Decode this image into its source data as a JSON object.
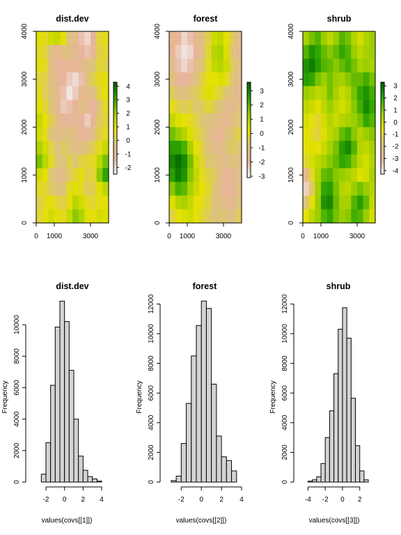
{
  "colors": {
    "bar_fill": "#d3d3d3",
    "ramp": [
      "#f2f2f2",
      "#e8b39c",
      "#dcc47a",
      "#e5e100",
      "#9ecf00",
      "#2ea600",
      "#006400"
    ]
  },
  "chart_data": [
    {
      "type": "heatmap",
      "title": "dist.dev",
      "xlim": [
        0,
        4000
      ],
      "ylim": [
        0,
        4000
      ],
      "xticks": [
        "0",
        "1000",
        "3000"
      ],
      "xtick_values": [
        0,
        1000,
        3000
      ],
      "yticks": [
        "0",
        "1000",
        "2000",
        "3000",
        "4000"
      ],
      "ytick_values": [
        0,
        1000,
        2000,
        3000,
        4000
      ],
      "zlim": [
        -2.5,
        4.3
      ],
      "legend_ticks": [
        "-2",
        "-1",
        "0",
        "1",
        "2",
        "3",
        "4"
      ],
      "legend_tick_values": [
        -2,
        -1,
        0,
        1,
        2,
        3,
        4
      ],
      "rows": [
        [
          1.0,
          0.6,
          1.2,
          1.4,
          0.8,
          -0.4,
          -0.8,
          -1.6,
          -2.0,
          -1.2,
          0.4,
          0.7
        ],
        [
          0.6,
          0.3,
          -0.4,
          -1.0,
          -0.6,
          -0.6,
          -1.0,
          -1.4,
          -1.6,
          -1.0,
          0.2,
          0.5
        ],
        [
          0.8,
          0.5,
          -0.6,
          -1.2,
          -1.4,
          -1.0,
          -1.2,
          -1.0,
          -0.6,
          -0.2,
          0.4,
          0.3
        ],
        [
          0.4,
          0.2,
          -0.5,
          -1.0,
          -1.4,
          -1.8,
          -2.1,
          -1.6,
          -0.4,
          0.2,
          0.6,
          0.8
        ],
        [
          0.6,
          0.1,
          -0.3,
          -0.8,
          -1.6,
          -2.3,
          -1.8,
          -1.0,
          -0.8,
          -0.5,
          0.3,
          0.9
        ],
        [
          1.0,
          0.4,
          -0.2,
          -1.0,
          -1.8,
          -1.6,
          -1.2,
          -0.6,
          -1.0,
          -1.4,
          -0.2,
          0.6
        ],
        [
          1.4,
          0.8,
          0.2,
          -0.6,
          -1.2,
          -1.4,
          -1.0,
          -1.4,
          -1.8,
          -1.2,
          0.0,
          0.4
        ],
        [
          1.2,
          0.6,
          -0.2,
          -0.8,
          -0.6,
          -0.4,
          -0.8,
          -1.2,
          -1.4,
          -0.6,
          0.2,
          0.6
        ],
        [
          1.8,
          1.2,
          0.3,
          -0.4,
          0.0,
          -0.2,
          -0.6,
          -0.6,
          -0.2,
          0.2,
          0.6,
          1.4
        ],
        [
          2.4,
          1.6,
          0.6,
          -0.2,
          -0.4,
          0.2,
          -0.2,
          0.3,
          0.4,
          0.6,
          1.6,
          2.4
        ],
        [
          1.2,
          0.8,
          -0.2,
          -0.6,
          -0.8,
          0.0,
          0.4,
          0.8,
          0.2,
          0.4,
          2.2,
          3.2
        ],
        [
          0.6,
          0.4,
          0.0,
          -0.4,
          -0.2,
          0.6,
          1.0,
          0.6,
          0.0,
          0.2,
          1.0,
          1.6
        ],
        [
          0.2,
          0.6,
          0.8,
          0.4,
          0.2,
          0.8,
          1.6,
          1.2,
          0.6,
          0.4,
          0.8,
          0.8
        ],
        [
          0.4,
          0.8,
          1.2,
          0.8,
          0.6,
          1.4,
          2.2,
          1.8,
          1.0,
          0.8,
          1.2,
          1.0
        ]
      ]
    },
    {
      "type": "heatmap",
      "title": "forest",
      "xlim": [
        0,
        4000
      ],
      "ylim": [
        0,
        4000
      ],
      "xticks": [
        "0",
        "1000",
        "3000"
      ],
      "xtick_values": [
        0,
        1000,
        3000
      ],
      "yticks": [
        "0",
        "1000",
        "2000",
        "3000",
        "4000"
      ],
      "ytick_values": [
        0,
        1000,
        2000,
        3000,
        4000
      ],
      "zlim": [
        -3.1,
        3.6
      ],
      "legend_ticks": [
        "-3",
        "-2",
        "-1",
        "0",
        "1",
        "2",
        "3"
      ],
      "legend_tick_values": [
        -3,
        -2,
        -1,
        0,
        1,
        2,
        3
      ],
      "rows": [
        [
          -1.6,
          -2.0,
          -2.6,
          -2.2,
          -1.6,
          -1.0,
          -0.4,
          0.6,
          0.8,
          0.2,
          -0.6,
          -1.4
        ],
        [
          -1.8,
          -2.4,
          -2.8,
          -2.6,
          -2.0,
          -1.2,
          -0.2,
          1.0,
          1.2,
          0.4,
          -0.8,
          -1.6
        ],
        [
          -1.4,
          -2.2,
          -2.6,
          -2.2,
          -1.4,
          -0.8,
          0.0,
          0.8,
          1.0,
          0.6,
          -0.6,
          -1.2
        ],
        [
          -1.0,
          -1.8,
          -2.0,
          -1.6,
          -1.0,
          -0.4,
          0.2,
          0.2,
          0.4,
          0.0,
          -0.8,
          -1.4
        ],
        [
          -0.6,
          -1.0,
          -1.2,
          -0.8,
          -0.6,
          -0.2,
          0.4,
          0.0,
          -0.4,
          -0.8,
          -1.2,
          -1.6
        ],
        [
          0.0,
          -0.4,
          -0.6,
          -0.4,
          -0.8,
          -0.6,
          -0.2,
          -0.6,
          -1.0,
          -1.4,
          -1.6,
          -1.2
        ],
        [
          0.8,
          0.4,
          0.2,
          0.0,
          -0.4,
          -0.8,
          -1.0,
          -1.2,
          -1.4,
          -1.6,
          -1.2,
          -0.8
        ],
        [
          1.8,
          1.4,
          1.0,
          0.4,
          -0.2,
          -0.6,
          -1.2,
          -1.6,
          -1.8,
          -1.2,
          -0.8,
          -0.4
        ],
        [
          2.6,
          2.6,
          2.2,
          1.2,
          0.2,
          -0.4,
          -1.0,
          -1.4,
          -1.4,
          -1.0,
          -0.6,
          -0.8
        ],
        [
          3.0,
          3.4,
          3.0,
          1.8,
          0.6,
          -0.2,
          -0.8,
          -0.8,
          -1.2,
          -1.4,
          -1.0,
          -1.2
        ],
        [
          2.6,
          3.2,
          2.8,
          1.6,
          0.8,
          0.0,
          -0.4,
          -0.6,
          -1.4,
          -1.8,
          -1.6,
          -1.4
        ],
        [
          1.6,
          2.2,
          2.0,
          1.2,
          0.6,
          0.2,
          -0.2,
          -0.8,
          -1.6,
          -1.8,
          -1.8,
          -1.2
        ],
        [
          0.4,
          1.0,
          1.2,
          0.8,
          0.2,
          0.0,
          -0.4,
          -1.0,
          -1.2,
          -1.4,
          -1.6,
          -1.0
        ],
        [
          -0.4,
          0.2,
          0.4,
          0.6,
          0.2,
          -0.2,
          -0.6,
          -1.0,
          -0.8,
          -1.0,
          -1.2,
          -0.6
        ]
      ]
    },
    {
      "type": "heatmap",
      "title": "shrub",
      "xlim": [
        0,
        4000
      ],
      "ylim": [
        0,
        4000
      ],
      "xticks": [
        "0",
        "1000",
        "3000"
      ],
      "xtick_values": [
        0,
        1000,
        3000
      ],
      "yticks": [
        "0",
        "1000",
        "2000",
        "3000",
        "4000"
      ],
      "ytick_values": [
        0,
        1000,
        2000,
        3000,
        4000
      ],
      "zlim": [
        -4.3,
        3.3
      ],
      "legend_ticks": [
        "-4",
        "-3",
        "-2",
        "-1",
        "0",
        "1",
        "2",
        "3"
      ],
      "legend_tick_values": [
        -4,
        -3,
        -2,
        -1,
        0,
        1,
        2,
        3
      ],
      "rows": [
        [
          0.6,
          1.2,
          1.6,
          0.8,
          0.2,
          0.8,
          1.6,
          1.2,
          0.4,
          -0.2,
          0.4,
          0.8
        ],
        [
          1.6,
          2.4,
          2.0,
          1.4,
          1.0,
          1.4,
          2.0,
          1.6,
          0.8,
          0.2,
          0.6,
          0.8
        ],
        [
          2.4,
          2.8,
          2.2,
          1.6,
          1.4,
          1.0,
          1.4,
          1.8,
          1.2,
          0.6,
          0.8,
          0.6
        ],
        [
          2.2,
          2.0,
          1.2,
          0.8,
          1.2,
          0.8,
          0.6,
          1.0,
          1.4,
          1.4,
          1.8,
          1.2
        ],
        [
          0.8,
          0.6,
          0.2,
          0.4,
          1.2,
          0.6,
          0.0,
          0.4,
          1.2,
          2.0,
          2.4,
          1.8
        ],
        [
          0.2,
          0.0,
          -0.4,
          0.2,
          0.8,
          0.2,
          -0.2,
          0.2,
          1.0,
          1.8,
          2.6,
          2.0
        ],
        [
          -0.2,
          -0.6,
          -1.0,
          -0.2,
          0.4,
          0.0,
          0.4,
          0.6,
          0.8,
          1.2,
          2.0,
          1.6
        ],
        [
          -0.4,
          -0.8,
          -1.2,
          -0.4,
          0.2,
          0.6,
          1.4,
          1.8,
          1.0,
          0.4,
          0.8,
          1.0
        ],
        [
          -0.6,
          -0.4,
          -0.6,
          0.0,
          0.6,
          1.2,
          2.2,
          2.6,
          1.6,
          0.4,
          0.2,
          0.6
        ],
        [
          -1.0,
          -0.2,
          0.2,
          0.6,
          1.0,
          1.4,
          2.0,
          1.8,
          1.0,
          0.2,
          -0.2,
          0.4
        ],
        [
          -2.6,
          -1.0,
          0.4,
          1.4,
          1.6,
          1.0,
          0.8,
          0.6,
          0.2,
          -0.4,
          -0.2,
          0.6
        ],
        [
          -3.6,
          -1.6,
          0.6,
          2.0,
          2.2,
          1.2,
          0.4,
          0.2,
          0.8,
          1.2,
          0.8,
          0.4
        ],
        [
          -1.8,
          -0.6,
          0.8,
          2.4,
          2.6,
          1.4,
          0.6,
          0.6,
          1.6,
          2.2,
          1.4,
          0.2
        ],
        [
          -0.6,
          0.2,
          0.8,
          1.6,
          2.0,
          1.2,
          0.8,
          1.0,
          1.8,
          1.6,
          0.8,
          -0.2
        ]
      ]
    },
    {
      "type": "bar",
      "title": "dist.dev",
      "xlabel": "values(covs[[1]])",
      "ylabel": "Frequency",
      "xlim": [
        -3.2,
        4.6
      ],
      "ylim": [
        0,
        11600
      ],
      "xticks": [
        "-2",
        "0",
        "2",
        "4"
      ],
      "xtick_values": [
        -2,
        0,
        2,
        4
      ],
      "yticks": [
        "0",
        "2000",
        "4000",
        "6000",
        "8000",
        "10000"
      ],
      "ytick_values": [
        0,
        2000,
        4000,
        6000,
        8000,
        10000
      ],
      "bin_edges": [
        -2.5,
        -2.0,
        -1.5,
        -1.0,
        -0.5,
        0.0,
        0.5,
        1.0,
        1.5,
        2.0,
        2.5,
        3.0,
        3.5,
        4.0
      ],
      "values": [
        500,
        2500,
        6150,
        9850,
        11500,
        10200,
        7100,
        4000,
        1650,
        750,
        350,
        200,
        60
      ]
    },
    {
      "type": "bar",
      "title": "forest",
      "xlabel": "values(covs[[2]])",
      "ylabel": "Frequency",
      "xlim": [
        -3.2,
        4.0
      ],
      "ylim": [
        0,
        12300
      ],
      "xticks": [
        "-2",
        "0",
        "2",
        "4"
      ],
      "xtick_values": [
        -2,
        0,
        2,
        4
      ],
      "yticks": [
        "0",
        "2000",
        "4000",
        "6000",
        "8000",
        "10000",
        "12000"
      ],
      "ytick_values": [
        0,
        2000,
        4000,
        6000,
        8000,
        10000,
        12000
      ],
      "bin_edges": [
        -3.0,
        -2.5,
        -2.0,
        -1.5,
        -1.0,
        -0.5,
        0.0,
        0.5,
        1.0,
        1.5,
        2.0,
        2.5,
        3.0,
        3.5
      ],
      "values": [
        100,
        400,
        2600,
        5300,
        8500,
        10550,
        12200,
        11700,
        6600,
        3100,
        1700,
        1450,
        750
      ]
    },
    {
      "type": "bar",
      "title": "shrub",
      "xlabel": "values(covs[[3]])",
      "ylabel": "Frequency",
      "xlim": [
        -4.6,
        3.8
      ],
      "ylim": [
        0,
        12300
      ],
      "xticks": [
        "-4",
        "-2",
        "0",
        "2"
      ],
      "xtick_values": [
        -4,
        -2,
        0,
        2
      ],
      "yticks": [
        "0",
        "2000",
        "4000",
        "6000",
        "8000",
        "10000",
        "12000"
      ],
      "ytick_values": [
        0,
        2000,
        4000,
        6000,
        8000,
        10000,
        12000
      ],
      "bin_edges": [
        -4.0,
        -3.5,
        -3.0,
        -2.5,
        -2.0,
        -1.5,
        -1.0,
        -0.5,
        0.0,
        0.5,
        1.0,
        1.5,
        2.0,
        2.5,
        3.0
      ],
      "values": [
        60,
        150,
        350,
        1250,
        3000,
        4800,
        7300,
        10300,
        11750,
        9700,
        5650,
        2450,
        750,
        150
      ]
    }
  ]
}
